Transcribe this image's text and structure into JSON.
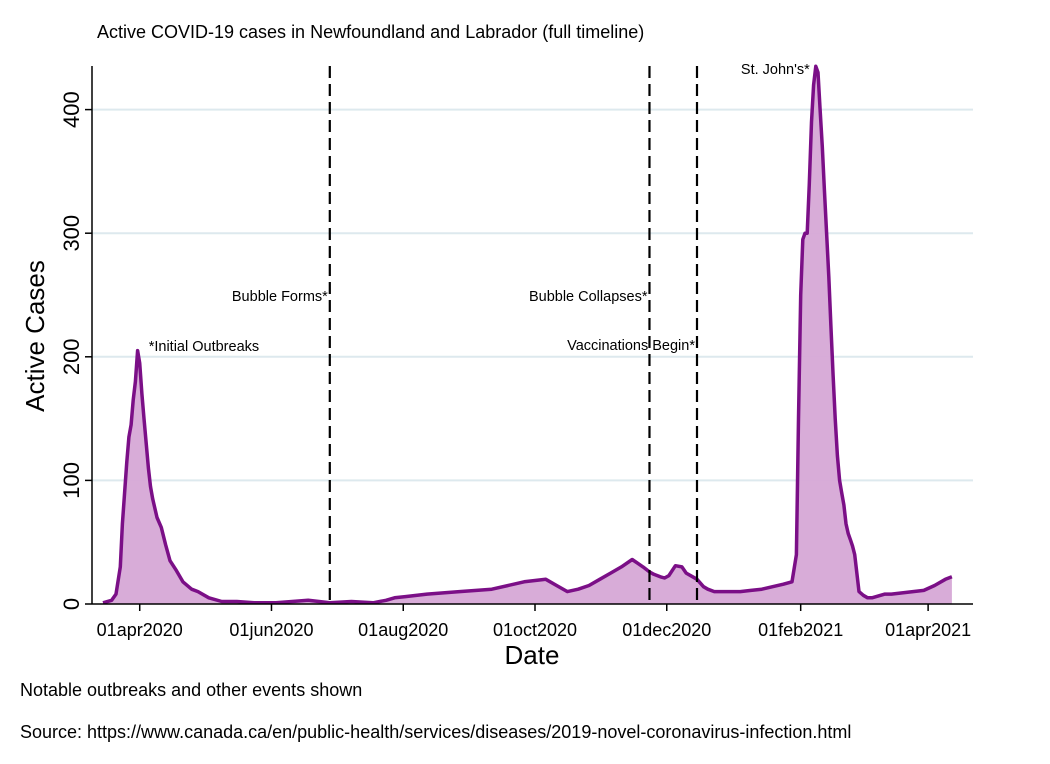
{
  "chart_data": {
    "type": "area",
    "title": "Active COVID-19 cases in Newfoundland and Labrador (full timeline)",
    "xlabel": "Date",
    "ylabel": "Active Cases",
    "ylim": [
      0,
      435
    ],
    "yticks": [
      0,
      100,
      200,
      300,
      400
    ],
    "xticks": [
      {
        "label": "01apr2020",
        "day": 17
      },
      {
        "label": "01jun2020",
        "day": 78
      },
      {
        "label": "01aug2020",
        "day": 139
      },
      {
        "label": "01oct2020",
        "day": 200
      },
      {
        "label": "01dec2020",
        "day": 261
      },
      {
        "label": "01feb2021",
        "day": 323
      },
      {
        "label": "01apr2021",
        "day": 382
      }
    ],
    "x_unit": "days since 15mar2020",
    "grid": true,
    "series": [
      {
        "name": "Active cases",
        "color": "#7b0f87",
        "fill": "#d6a8d6",
        "x": [
          0,
          4,
          6,
          8,
          9,
          10,
          11,
          12,
          13,
          14,
          15,
          16,
          17,
          18,
          19,
          20,
          21,
          22,
          23,
          25,
          27,
          29,
          31,
          34,
          37,
          41,
          44,
          49,
          55,
          62,
          70,
          80,
          95,
          105,
          115,
          125,
          131,
          135,
          140,
          150,
          165,
          180,
          195,
          205,
          210,
          215,
          220,
          225,
          230,
          235,
          240,
          245,
          250,
          253,
          255,
          258,
          260,
          262,
          265,
          268,
          270,
          273,
          275,
          276,
          278,
          280,
          283,
          287,
          290,
          295,
          300,
          305,
          310,
          315,
          319,
          321,
          322,
          323,
          324,
          325,
          326,
          327,
          328,
          329,
          330,
          331,
          332,
          333,
          334,
          335,
          336,
          337,
          338,
          339,
          340,
          341,
          342,
          343,
          344,
          345,
          346,
          347,
          348,
          350,
          352,
          354,
          356,
          358,
          360,
          362,
          365,
          370,
          375,
          380,
          385,
          390,
          393
        ],
        "values": [
          1,
          3,
          8,
          30,
          65,
          90,
          115,
          135,
          145,
          165,
          180,
          205,
          195,
          170,
          150,
          130,
          110,
          95,
          85,
          70,
          62,
          48,
          35,
          27,
          18,
          12,
          10,
          5,
          2,
          2,
          1,
          1,
          3,
          1,
          2,
          1,
          3,
          5,
          6,
          8,
          10,
          12,
          18,
          20,
          15,
          10,
          12,
          15,
          20,
          25,
          30,
          36,
          30,
          26,
          24,
          22,
          21,
          23,
          31,
          30,
          25,
          22,
          20,
          18,
          14,
          12,
          10,
          10,
          10,
          10,
          11,
          12,
          14,
          16,
          18,
          40,
          150,
          250,
          295,
          300,
          300,
          340,
          390,
          420,
          435,
          430,
          400,
          370,
          335,
          300,
          265,
          225,
          185,
          150,
          120,
          100,
          90,
          80,
          65,
          57,
          52,
          47,
          40,
          10,
          7,
          5,
          5,
          6,
          7,
          8,
          8,
          9,
          10,
          11,
          15,
          20,
          22
        ]
      }
    ],
    "events": [
      {
        "label": "*Initial Outbreaks",
        "day": 17,
        "kind": "annotation"
      },
      {
        "label": "Bubble Forms*",
        "day": 105,
        "kind": "vline"
      },
      {
        "label": "Bubble Collapses*",
        "day": 253,
        "kind": "vline"
      },
      {
        "label": "Vaccinations Begin*",
        "day": 275,
        "kind": "vline"
      },
      {
        "label": "St. John's*",
        "day": 330,
        "kind": "annotation"
      }
    ]
  },
  "notes": {
    "line1": "Notable outbreaks and other events shown",
    "line2": "Source: https://www.canada.ca/en/public-health/services/diseases/2019-novel-coronavirus-infection.html"
  }
}
